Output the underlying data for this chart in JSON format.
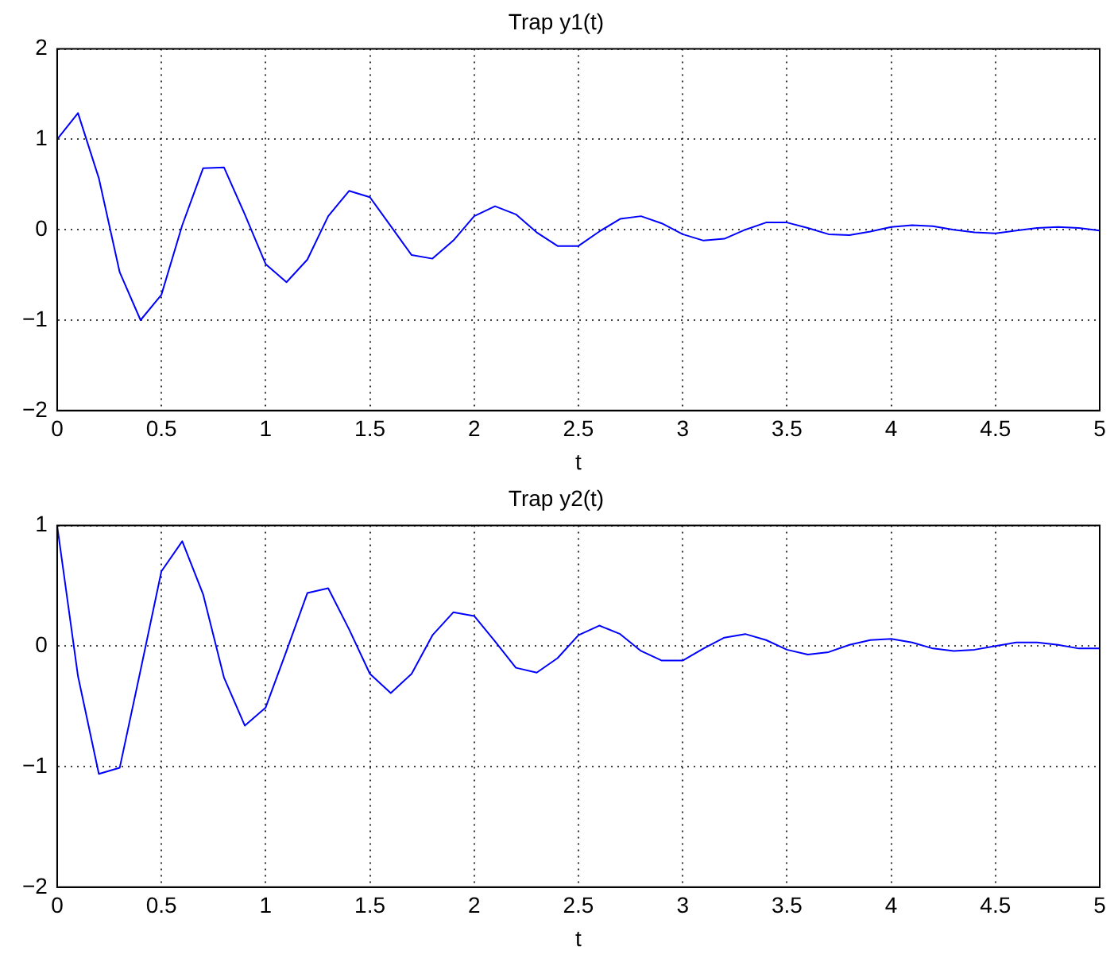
{
  "chart_data": [
    {
      "type": "line",
      "title": "Trap y1(t)",
      "xlabel": "t",
      "x": [
        0,
        0.1,
        0.2,
        0.3,
        0.4,
        0.5,
        0.6,
        0.7,
        0.8,
        0.9,
        1,
        1.1,
        1.2,
        1.3,
        1.4,
        1.5,
        1.6,
        1.7,
        1.8,
        1.9,
        2,
        2.1,
        2.2,
        2.3,
        2.4,
        2.5,
        2.6,
        2.7,
        2.8,
        2.9,
        3,
        3.1,
        3.2,
        3.3,
        3.4,
        3.5,
        3.6,
        3.7,
        3.8,
        3.9,
        4,
        4.1,
        4.2,
        4.3,
        4.4,
        4.5,
        4.6,
        4.7,
        4.8,
        4.9,
        5
      ],
      "series": [
        {
          "color": "#0000ff",
          "values": [
            1.0,
            1.29,
            0.57,
            -0.47,
            -1.0,
            -0.72,
            0.05,
            0.68,
            0.69,
            0.17,
            -0.38,
            -0.58,
            -0.33,
            0.15,
            0.43,
            0.36,
            0.04,
            -0.28,
            -0.32,
            -0.12,
            0.15,
            0.26,
            0.17,
            -0.03,
            -0.18,
            -0.18,
            -0.02,
            0.12,
            0.15,
            0.07,
            -0.05,
            -0.12,
            -0.1,
            0.0,
            0.08,
            0.08,
            0.02,
            -0.05,
            -0.06,
            -0.02,
            0.03,
            0.05,
            0.04,
            0.0,
            -0.03,
            -0.04,
            -0.01,
            0.02,
            0.03,
            0.02,
            -0.01
          ]
        }
      ],
      "xlim": [
        0,
        5
      ],
      "xticks": [
        0,
        0.5,
        1,
        1.5,
        2,
        2.5,
        3,
        3.5,
        4,
        4.5,
        5
      ],
      "ylim": [
        -2,
        2
      ],
      "yticks": [
        -2,
        -1,
        0,
        1,
        2
      ],
      "grid": true,
      "legend": false,
      "line_style": "solid",
      "marker": "none"
    },
    {
      "type": "line",
      "title": "Trap y2(t)",
      "xlabel": "t",
      "x": [
        0,
        0.1,
        0.2,
        0.3,
        0.4,
        0.5,
        0.6,
        0.7,
        0.8,
        0.9,
        1,
        1.1,
        1.2,
        1.3,
        1.4,
        1.5,
        1.6,
        1.7,
        1.8,
        1.9,
        2,
        2.1,
        2.2,
        2.3,
        2.4,
        2.5,
        2.6,
        2.7,
        2.8,
        2.9,
        3,
        3.1,
        3.2,
        3.3,
        3.4,
        3.5,
        3.6,
        3.7,
        3.8,
        3.9,
        4,
        4.1,
        4.2,
        4.3,
        4.4,
        4.5,
        4.6,
        4.7,
        4.8,
        4.9,
        5
      ],
      "series": [
        {
          "color": "#0000ff",
          "values": [
            1.0,
            -0.25,
            -1.06,
            -1.01,
            -0.2,
            0.62,
            0.87,
            0.43,
            -0.26,
            -0.66,
            -0.51,
            -0.04,
            0.44,
            0.48,
            0.14,
            -0.23,
            -0.39,
            -0.23,
            0.09,
            0.28,
            0.25,
            0.04,
            -0.18,
            -0.22,
            -0.1,
            0.09,
            0.17,
            0.1,
            -0.04,
            -0.12,
            -0.12,
            -0.02,
            0.07,
            0.1,
            0.05,
            -0.03,
            -0.07,
            -0.05,
            0.01,
            0.05,
            0.06,
            0.03,
            -0.02,
            -0.04,
            -0.03,
            0.0,
            0.03,
            0.03,
            0.01,
            -0.02,
            -0.02
          ]
        }
      ],
      "xlim": [
        0,
        5
      ],
      "xticks": [
        0,
        0.5,
        1,
        1.5,
        2,
        2.5,
        3,
        3.5,
        4,
        4.5,
        5
      ],
      "ylim": [
        -2,
        1
      ],
      "yticks": [
        -2,
        -1,
        0,
        1
      ],
      "grid": true,
      "legend": false,
      "line_style": "solid",
      "marker": "none"
    }
  ]
}
